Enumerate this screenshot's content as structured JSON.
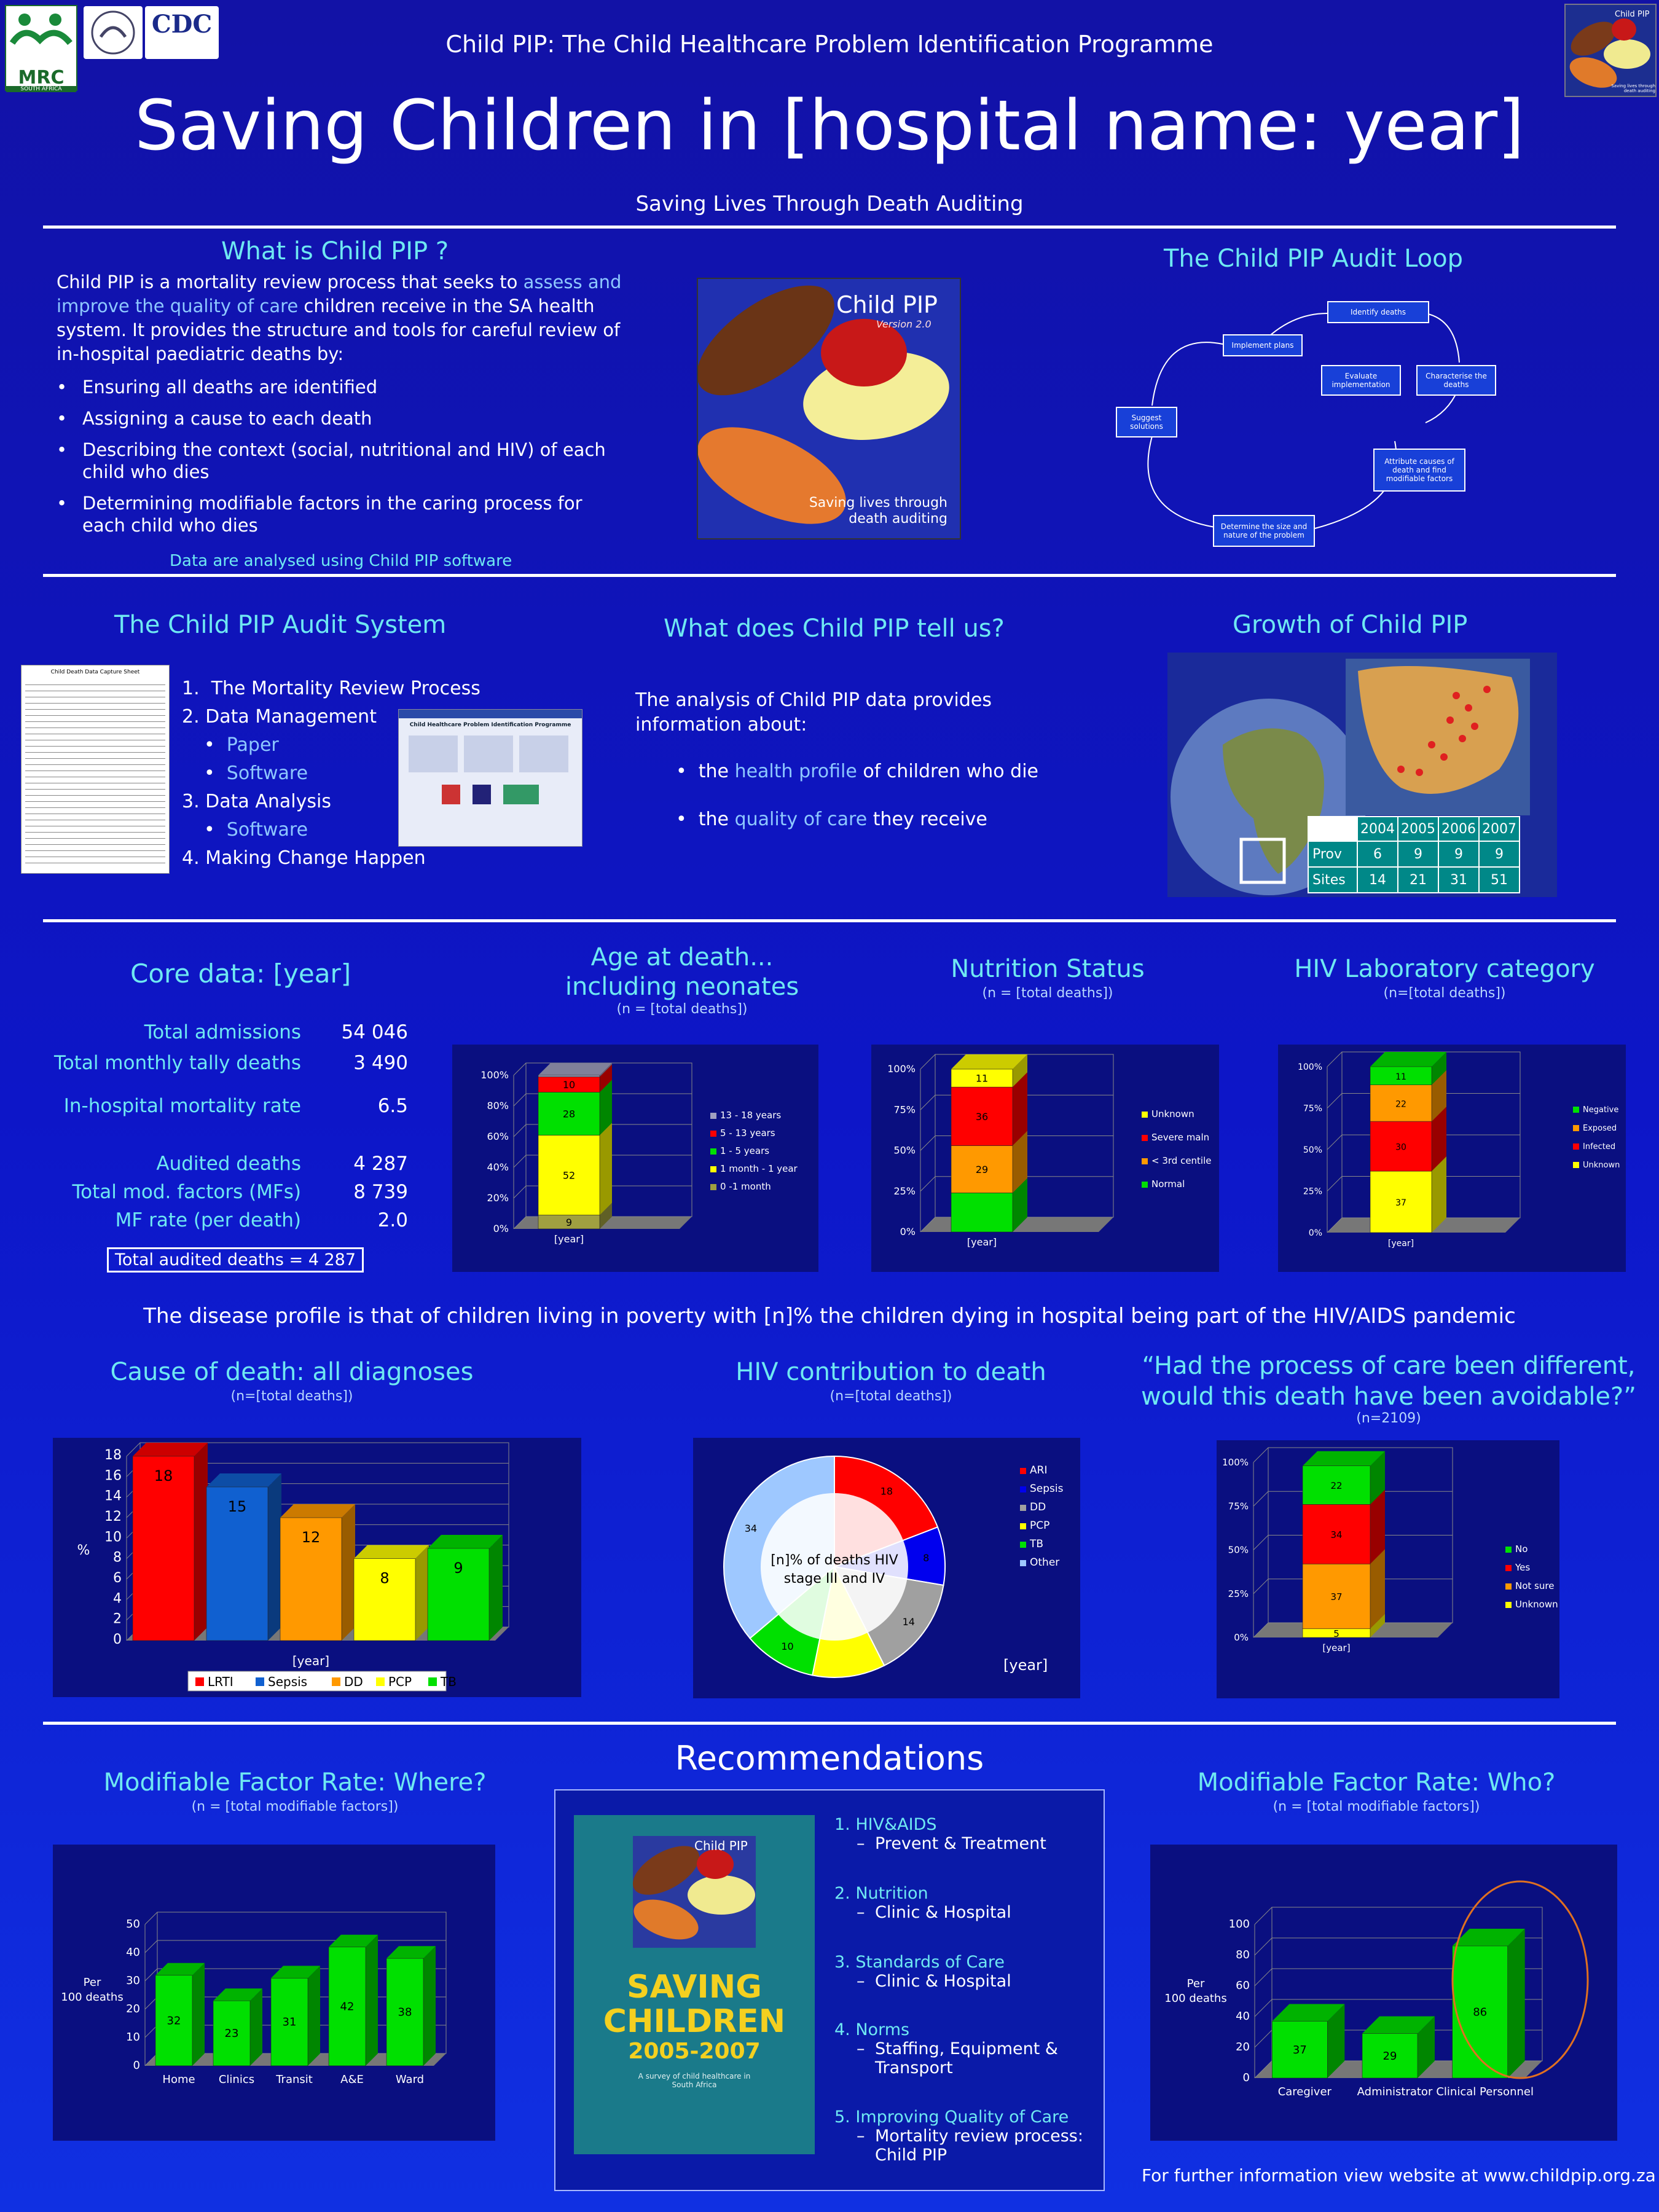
{
  "header": {
    "logos": [
      "MRC",
      "SOUTH AFRICA",
      "CDC"
    ],
    "top_title": "Child PIP: The Child Healthcare Problem Identification Programme",
    "main_title": "Saving Children in [hospital name: year]",
    "tagline": "Saving Lives Through Death Auditing",
    "corner_logo_title": "Child PIP",
    "corner_logo_sub": "Saving lives through death auditing"
  },
  "what_is": {
    "title": "What is Child PIP ?",
    "intro_a": "Child PIP is a mortality review process that seeks to ",
    "intro_hl": "assess and improve the quality of care",
    "intro_b": " children receive in the SA health system.  It provides the structure and tools for careful review of in-hospital paediatric deaths by:",
    "bullets": [
      "Ensuring all deaths are identified",
      "Assigning a cause to each death",
      "Describing the context (social, nutritional and HIV) of each child who dies",
      "Determining modifiable factors in the caring process for each child who dies"
    ],
    "note": "Data are analysed using Child PIP software"
  },
  "cover_image": {
    "title": "Child PIP",
    "version": "Version 2.0",
    "caption": "Saving lives through death auditing"
  },
  "audit_loop": {
    "title": "The Child PIP Audit Loop",
    "steps": [
      "Identify deaths",
      "Implement plans",
      "Evaluate implementation",
      "Characterise the deaths",
      "Suggest solutions",
      "Attribute causes of death and find modifiable factors",
      "Determine the size and nature of the problem"
    ]
  },
  "audit_system": {
    "title": "The Child PIP Audit System",
    "items": [
      {
        "n": "1.",
        "t": "The Mortality Review Process"
      },
      {
        "n": "2.",
        "t": "Data Management"
      },
      {
        "n": "•",
        "t": "Paper",
        "sub": true
      },
      {
        "n": "•",
        "t": "Software",
        "sub": true
      },
      {
        "n": "3.",
        "t": "Data Analysis"
      },
      {
        "n": "•",
        "t": "Software",
        "sub": true
      },
      {
        "n": "4.",
        "t": "Making Change Happen"
      }
    ],
    "software_window_title": "Child Healthcare Problem Identification Programme",
    "form_title": "Child Death Data Capture Sheet"
  },
  "tells_us": {
    "title": "What does Child PIP tell us?",
    "intro": "The analysis of Child PIP data provides information about:",
    "b1a": "the ",
    "b1h": "health profile",
    "b1b": " of children who die",
    "b2a": "the ",
    "b2h": "quality of care",
    "b2b": " they receive"
  },
  "growth": {
    "title": "Growth of Child PIP",
    "header": [
      "",
      "2004",
      "2005",
      "2006",
      "2007"
    ],
    "rows": [
      [
        "Prov",
        "6",
        "9",
        "9",
        "9"
      ],
      [
        "Sites",
        "14",
        "21",
        "31",
        "51"
      ]
    ]
  },
  "core": {
    "title": "Core data: [year]",
    "rows": [
      {
        "label": "Total admissions",
        "value": "54 046"
      },
      {
        "label": "Total monthly tally deaths",
        "value": "3 490"
      },
      {
        "label": "In-hospital mortality rate",
        "value": "6.5"
      },
      {
        "label": "Audited deaths",
        "value": "4 287"
      },
      {
        "label": "Total mod. factors (MFs)",
        "value": "8 739"
      },
      {
        "label": "MF rate (per death)",
        "value": "2.0"
      }
    ],
    "boxed": "Total audited deaths = 4 287"
  },
  "statement": "The disease profile is that of children living in poverty with [n]% the children dying in hospital being part of the HIV/AIDS pandemic",
  "recommendations": {
    "title": "Recommendations",
    "items": [
      {
        "n": "1.",
        "t": "HIV&AIDS",
        "s": "Prevent & Treatment"
      },
      {
        "n": "2.",
        "t": "Nutrition",
        "s": "Clinic & Hospital"
      },
      {
        "n": "3.",
        "t": "Standards of Care",
        "s": "Clinic & Hospital"
      },
      {
        "n": "4.",
        "t": "Norms",
        "s": "Staffing, Equipment & Transport"
      },
      {
        "n": "5.",
        "t": "Improving Quality of Care",
        "s": "Mortality review process: Child PIP"
      }
    ],
    "book": {
      "title1": "SAVING",
      "title2": "CHILDREN",
      "years": "2005-2007",
      "subtitle": "A survey of child healthcare in South Africa",
      "badge": "Child PIP"
    }
  },
  "footer": "For further information view website at www.childpip.org.za",
  "colors": {
    "bg": "#0d16c8",
    "accent": "#6fe8f2",
    "highlight": "#8ec8ff"
  },
  "chart_data": [
    {
      "id": "age",
      "type": "bar",
      "stacked": true,
      "title": "Age at death...\nincluding neonates",
      "subtitle": "(n = [total deaths])",
      "categories": [
        "[year]"
      ],
      "ylim": [
        0,
        100
      ],
      "yticks": [
        "0%",
        "20%",
        "40%",
        "60%",
        "80%",
        "100%"
      ],
      "series": [
        {
          "name": "0 -1 month",
          "values": [
            9
          ],
          "color": "#a0a040"
        },
        {
          "name": "1 month - 1 year",
          "values": [
            52
          ],
          "color": "#ffff00"
        },
        {
          "name": "1 - 5 years",
          "values": [
            28
          ],
          "color": "#00e000"
        },
        {
          "name": "5 - 13 years",
          "values": [
            10
          ],
          "color": "#ff0000"
        },
        {
          "name": "13 - 18 years",
          "values": [
            1
          ],
          "color": "#a0a0c0"
        }
      ],
      "data_labels": [
        "9",
        "52",
        "28",
        "10",
        ""
      ]
    },
    {
      "id": "nutrition",
      "type": "bar",
      "stacked": true,
      "title": "Nutrition Status",
      "subtitle": "(n = [total deaths])",
      "categories": [
        "[year]"
      ],
      "ylim": [
        0,
        100
      ],
      "yticks": [
        "0%",
        "25%",
        "50%",
        "75%",
        "100%"
      ],
      "series": [
        {
          "name": "Normal",
          "values": [
            24
          ],
          "color": "#00e000"
        },
        {
          "name": "< 3rd centile",
          "values": [
            29
          ],
          "color": "#ff9900"
        },
        {
          "name": "Severe maln",
          "values": [
            36
          ],
          "color": "#ff0000"
        },
        {
          "name": "Unknown",
          "values": [
            11
          ],
          "color": "#ffff00"
        }
      ],
      "data_labels": [
        "",
        "29",
        "36",
        "11"
      ]
    },
    {
      "id": "hiv_lab",
      "type": "bar",
      "stacked": true,
      "title": "HIV Laboratory category",
      "subtitle": "(n=[total deaths])",
      "categories": [
        "[year]"
      ],
      "ylim": [
        0,
        100
      ],
      "yticks": [
        "0%",
        "25%",
        "50%",
        "75%",
        "100%"
      ],
      "series": [
        {
          "name": "Unknown",
          "values": [
            37
          ],
          "color": "#ffff00"
        },
        {
          "name": "Infected",
          "values": [
            30
          ],
          "color": "#ff0000"
        },
        {
          "name": "Exposed",
          "values": [
            22
          ],
          "color": "#ff9900"
        },
        {
          "name": "Negative",
          "values": [
            11
          ],
          "color": "#00e000"
        }
      ],
      "data_labels": [
        "37",
        "30",
        "22",
        "11"
      ]
    },
    {
      "id": "cause",
      "type": "bar",
      "title": "Cause of death: all diagnoses",
      "subtitle": "(n=[total deaths])",
      "categories": [
        "LRTI",
        "Sepsis",
        "DD",
        "PCP",
        "TB"
      ],
      "values": [
        18,
        15,
        12,
        8,
        9
      ],
      "colors": [
        "#ff0000",
        "#1060d0",
        "#ff9900",
        "#ffff00",
        "#00e000"
      ],
      "ylim": [
        0,
        18
      ],
      "yticks": [
        "0",
        "2",
        "4",
        "6",
        "8",
        "10",
        "12",
        "14",
        "16",
        "18"
      ],
      "ylabel": "%",
      "xlabel": "[year]"
    },
    {
      "id": "hiv_contrib",
      "type": "pie",
      "title": "HIV contribution to death",
      "subtitle": "(n=[total deaths])",
      "categories": [
        "ARI",
        "Sepsis",
        "DD",
        "PCP",
        "TB",
        "Other"
      ],
      "values": [
        18,
        8,
        14,
        10,
        10,
        34
      ],
      "colors": [
        "#ff0000",
        "#0000ee",
        "#a0a0a0",
        "#ffff00",
        "#00e000",
        "#9ec8ff"
      ],
      "labels": [
        "18",
        "8",
        "14",
        "",
        "10",
        "34"
      ],
      "center_text": "[n]% of deaths HIV stage III and IV",
      "year_label": "[year]"
    },
    {
      "id": "avoidable",
      "type": "bar",
      "stacked": true,
      "title": "“Had the process of care been different,\nwould this death have been avoidable?”",
      "subtitle": "(n=2109)",
      "categories": [
        "[year]"
      ],
      "ylim": [
        0,
        100
      ],
      "yticks": [
        "0%",
        "25%",
        "50%",
        "75%",
        "100%"
      ],
      "series": [
        {
          "name": "Unknown",
          "values": [
            5
          ],
          "color": "#ffff00"
        },
        {
          "name": "Not sure",
          "values": [
            37
          ],
          "color": "#ff9900"
        },
        {
          "name": "Yes",
          "values": [
            34
          ],
          "color": "#ff0000"
        },
        {
          "name": "No",
          "values": [
            22
          ],
          "color": "#00e000"
        }
      ],
      "data_labels": [
        "5",
        "37",
        "34",
        "22"
      ]
    },
    {
      "id": "where",
      "type": "bar",
      "title": "Modifiable Factor Rate: Where?",
      "subtitle": "(n = [total modifiable factors])",
      "categories": [
        "Home",
        "Clinics",
        "Transit",
        "A&E",
        "Ward"
      ],
      "values": [
        32,
        23,
        31,
        42,
        38
      ],
      "ylim": [
        0,
        50
      ],
      "yticks": [
        "0",
        "10",
        "20",
        "30",
        "40",
        "50"
      ],
      "ylabel": "Per\n100 deaths",
      "color": "#00e000"
    },
    {
      "id": "who",
      "type": "bar",
      "title": "Modifiable Factor Rate: Who?",
      "subtitle": "(n = [total modifiable factors])",
      "categories": [
        "Caregiver",
        "Administrator",
        "Clinical Personnel"
      ],
      "values": [
        37,
        29,
        86
      ],
      "ylim": [
        0,
        100
      ],
      "yticks": [
        "0",
        "20",
        "40",
        "60",
        "80",
        "100"
      ],
      "ylabel": "Per\n100 deaths",
      "color": "#00e000"
    }
  ]
}
